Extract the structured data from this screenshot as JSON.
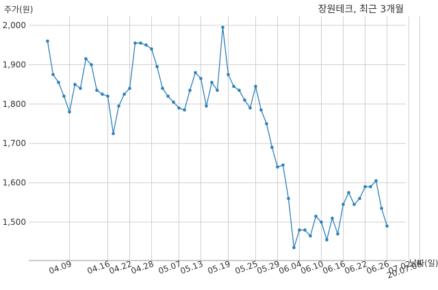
{
  "title": "장원테크, 최근 3개월",
  "ylabel": "주가(원)",
  "xlabel": "날짜(일)",
  "colors": {
    "series": "#2c7fb8",
    "grid": "#cfcfcf",
    "text": "#333333"
  },
  "chart_data": {
    "type": "line",
    "title": "장원테크, 최근 3개월",
    "xlabel": "날짜(일)",
    "ylabel": "주가(원)",
    "ylim": [
      1400,
      2030
    ],
    "yticks": [
      1500,
      1600,
      1700,
      1800,
      1900,
      2000
    ],
    "ytick_labels": [
      "1,500",
      "1,600",
      "1,700",
      "1,800",
      "1,900",
      "2,000"
    ],
    "grid": true,
    "xtick_indices": [
      4,
      11,
      15,
      19,
      24,
      28,
      33,
      38,
      42,
      46,
      50,
      54,
      58,
      62,
      66,
      68
    ],
    "xtick_labels": [
      "04.09",
      "04.16",
      "04.22",
      "04.28",
      "05.07",
      "05.13",
      "05.19",
      "05.25",
      "05.29",
      "06.04",
      "06.10",
      "06.16",
      "06.22",
      "06.26",
      "07.02",
      "20.07.08"
    ],
    "series": [
      {
        "values": [
          1960,
          1875,
          1855,
          1820,
          1780,
          1850,
          1840,
          1915,
          1900,
          1835,
          1825,
          1820,
          1725,
          1795,
          1825,
          1840,
          1955,
          1955,
          1950,
          1940,
          1895,
          1840,
          1820,
          1805,
          1790,
          1785,
          1835,
          1880,
          1865,
          1795,
          1855,
          1835,
          1995,
          1875,
          1845,
          1835,
          1810,
          1790,
          1845,
          1785,
          1750,
          1690,
          1640,
          1645,
          1560,
          1435,
          1480,
          1480,
          1465,
          1515,
          1500,
          1455,
          1510,
          1470,
          1545,
          1575,
          1545,
          1560,
          1590,
          1590,
          1605,
          1535,
          1490
        ]
      }
    ]
  }
}
